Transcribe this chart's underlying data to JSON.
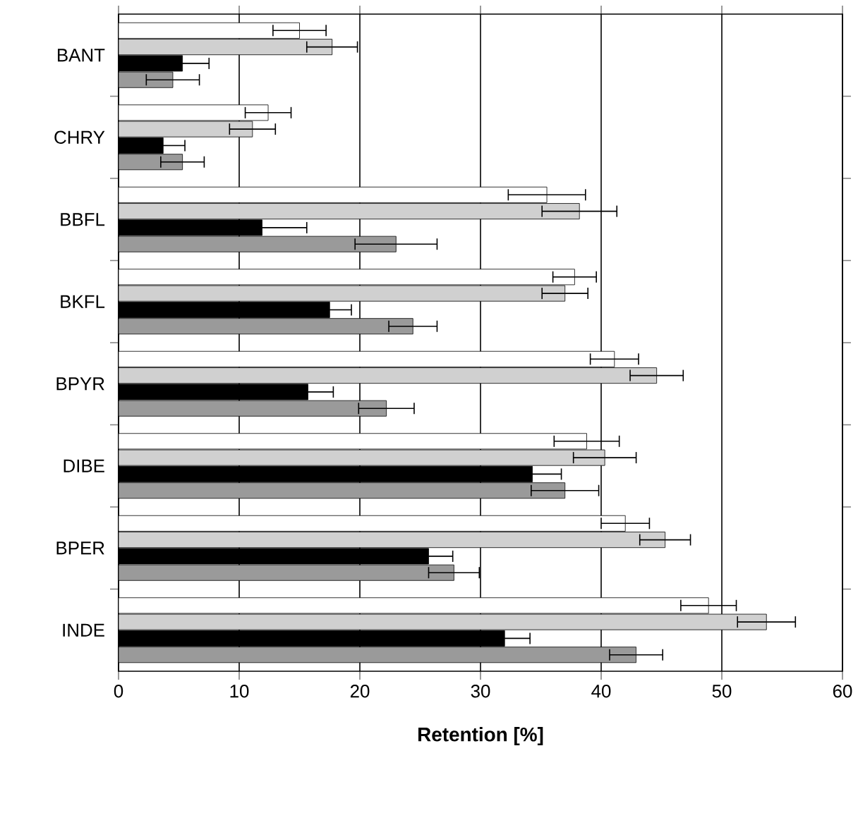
{
  "chart_data": {
    "type": "bar",
    "orientation": "horizontal",
    "xlabel": "Retention [%]",
    "categories": [
      "BANT",
      "CHRY",
      "BBFL",
      "BKFL",
      "BPYR",
      "DIBE",
      "BPER",
      "INDE"
    ],
    "series": [
      {
        "color": "#ffffff",
        "values": [
          15.0,
          12.4,
          35.5,
          37.8,
          41.1,
          38.8,
          42.0,
          48.9
        ],
        "errors": [
          2.2,
          1.9,
          3.2,
          1.8,
          2.0,
          2.7,
          2.0,
          2.3
        ]
      },
      {
        "color": "#d0d0d0",
        "values": [
          17.7,
          11.1,
          38.2,
          37.0,
          44.6,
          40.3,
          45.3,
          53.7
        ],
        "errors": [
          2.1,
          1.9,
          3.1,
          1.9,
          2.2,
          2.6,
          2.1,
          2.4
        ]
      },
      {
        "color": "#000000",
        "values": [
          5.3,
          3.7,
          11.9,
          17.5,
          15.7,
          34.3,
          25.7,
          32.0
        ],
        "errors": [
          2.2,
          1.8,
          3.7,
          1.8,
          2.1,
          2.4,
          2.0,
          2.1
        ]
      },
      {
        "color": "#9a9a9a",
        "values": [
          4.5,
          5.3,
          23.0,
          24.4,
          22.2,
          37.0,
          27.8,
          42.9
        ],
        "errors": [
          2.2,
          1.8,
          3.4,
          2.0,
          2.3,
          2.8,
          2.1,
          2.2
        ]
      }
    ],
    "xlim": [
      0,
      60
    ],
    "xticks": [
      0,
      10,
      20,
      30,
      40,
      50,
      60
    ],
    "grid": "x"
  }
}
